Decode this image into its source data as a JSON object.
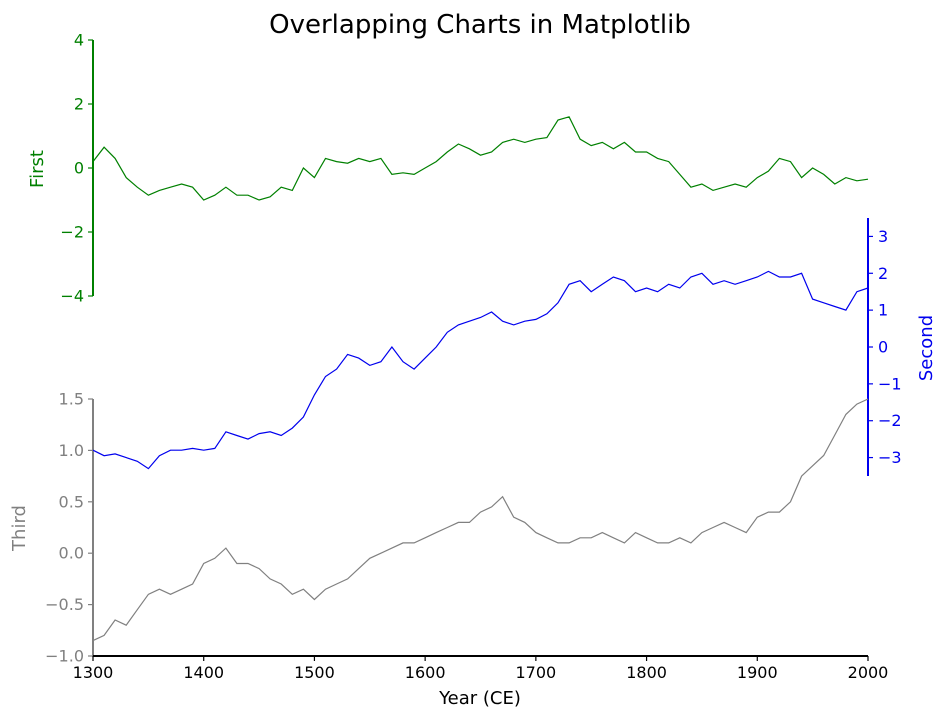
{
  "chart_data": {
    "type": "line",
    "title": "Overlapping Charts in Matplotlib",
    "xlabel": "Year (CE)",
    "xlim": [
      1300,
      2000
    ],
    "x_ticks": [
      1300,
      1400,
      1500,
      1600,
      1700,
      1800,
      1900,
      2000
    ],
    "x_tick_labels": [
      "1300",
      "1400",
      "1500",
      "1600",
      "1700",
      "1800",
      "1900",
      "2000"
    ],
    "grid": false,
    "series": [
      {
        "name": "First",
        "axis_label": "First",
        "color": "#008000",
        "ylim": [
          -4,
          4
        ],
        "y_ticks": [
          -4,
          -2,
          0,
          2,
          4
        ],
        "y_tick_labels": [
          "−4",
          "−2",
          "0",
          "2",
          "4"
        ],
        "x": [
          1300,
          1310,
          1320,
          1330,
          1340,
          1350,
          1360,
          1370,
          1380,
          1390,
          1400,
          1410,
          1420,
          1430,
          1440,
          1450,
          1460,
          1470,
          1480,
          1490,
          1500,
          1510,
          1520,
          1530,
          1540,
          1550,
          1560,
          1570,
          1580,
          1590,
          1600,
          1610,
          1620,
          1630,
          1640,
          1650,
          1660,
          1670,
          1680,
          1690,
          1700,
          1710,
          1720,
          1730,
          1740,
          1750,
          1760,
          1770,
          1780,
          1790,
          1800,
          1810,
          1820,
          1830,
          1840,
          1850,
          1860,
          1870,
          1880,
          1890,
          1900,
          1910,
          1920,
          1930,
          1940,
          1950,
          1960,
          1970,
          1980,
          1990,
          2000
        ],
        "values": [
          0.2,
          0.65,
          0.3,
          -0.3,
          -0.6,
          -0.85,
          -0.7,
          -0.6,
          -0.5,
          -0.6,
          -1.0,
          -0.85,
          -0.6,
          -0.85,
          -0.85,
          -1.0,
          -0.9,
          -0.6,
          -0.7,
          0.0,
          -0.3,
          0.3,
          0.2,
          0.15,
          0.3,
          0.2,
          0.3,
          -0.2,
          -0.15,
          -0.2,
          0.0,
          0.2,
          0.5,
          0.75,
          0.6,
          0.4,
          0.5,
          0.8,
          0.9,
          0.8,
          0.9,
          0.95,
          1.5,
          1.6,
          0.9,
          0.7,
          0.8,
          0.6,
          0.8,
          0.5,
          0.5,
          0.3,
          0.2,
          -0.2,
          -0.6,
          -0.5,
          -0.7,
          -0.6,
          -0.5,
          -0.6,
          -0.3,
          -0.1,
          0.3,
          0.2,
          -0.3,
          0.0,
          -0.2,
          -0.5,
          -0.3,
          -0.4,
          -0.35
        ]
      },
      {
        "name": "Second",
        "axis_label": "Second",
        "color": "#0000ee",
        "ylim": [
          -3.5,
          3.5
        ],
        "y_ticks": [
          -3,
          -2,
          -1,
          0,
          1,
          2,
          3
        ],
        "y_tick_labels": [
          "−3",
          "−2",
          "−1",
          "0",
          "1",
          "2",
          "3"
        ],
        "x": [
          1300,
          1310,
          1320,
          1330,
          1340,
          1350,
          1360,
          1370,
          1380,
          1390,
          1400,
          1410,
          1420,
          1430,
          1440,
          1450,
          1460,
          1470,
          1480,
          1490,
          1500,
          1510,
          1520,
          1530,
          1540,
          1550,
          1560,
          1570,
          1580,
          1590,
          1600,
          1610,
          1620,
          1630,
          1640,
          1650,
          1660,
          1670,
          1680,
          1690,
          1700,
          1710,
          1720,
          1730,
          1740,
          1750,
          1760,
          1770,
          1780,
          1790,
          1800,
          1810,
          1820,
          1830,
          1840,
          1850,
          1860,
          1870,
          1880,
          1890,
          1900,
          1910,
          1920,
          1930,
          1940,
          1950,
          1960,
          1970,
          1980,
          1990,
          2000
        ],
        "values": [
          -2.8,
          -2.95,
          -2.9,
          -3.0,
          -3.1,
          -3.3,
          -2.95,
          -2.8,
          -2.8,
          -2.75,
          -2.8,
          -2.75,
          -2.3,
          -2.4,
          -2.5,
          -2.35,
          -2.3,
          -2.4,
          -2.2,
          -1.9,
          -1.3,
          -0.8,
          -0.6,
          -0.2,
          -0.3,
          -0.5,
          -0.4,
          0.0,
          -0.4,
          -0.6,
          -0.3,
          0.0,
          0.4,
          0.6,
          0.7,
          0.8,
          0.95,
          0.7,
          0.6,
          0.7,
          0.75,
          0.9,
          1.2,
          1.7,
          1.8,
          1.5,
          1.7,
          1.9,
          1.8,
          1.5,
          1.6,
          1.5,
          1.7,
          1.6,
          1.9,
          2.0,
          1.7,
          1.8,
          1.7,
          1.8,
          1.9,
          2.05,
          1.9,
          1.9,
          2.0,
          1.3,
          1.2,
          1.1,
          1.0,
          1.5,
          1.6
        ]
      },
      {
        "name": "Third",
        "axis_label": "Third",
        "color": "#808080",
        "ylim": [
          -1.0,
          1.5
        ],
        "y_ticks": [
          -1.0,
          -0.5,
          0.0,
          0.5,
          1.0,
          1.5
        ],
        "y_tick_labels": [
          "−1.0",
          "−0.5",
          "0.0",
          "0.5",
          "1.0",
          "1.5"
        ],
        "x": [
          1300,
          1310,
          1320,
          1330,
          1340,
          1350,
          1360,
          1370,
          1380,
          1390,
          1400,
          1410,
          1420,
          1430,
          1440,
          1450,
          1460,
          1470,
          1480,
          1490,
          1500,
          1510,
          1520,
          1530,
          1540,
          1550,
          1560,
          1570,
          1580,
          1590,
          1600,
          1610,
          1620,
          1630,
          1640,
          1650,
          1660,
          1670,
          1680,
          1690,
          1700,
          1710,
          1720,
          1730,
          1740,
          1750,
          1760,
          1770,
          1780,
          1790,
          1800,
          1810,
          1820,
          1830,
          1840,
          1850,
          1860,
          1870,
          1880,
          1890,
          1900,
          1910,
          1920,
          1930,
          1940,
          1950,
          1960,
          1970,
          1980,
          1990,
          2000
        ],
        "values": [
          -0.85,
          -0.8,
          -0.65,
          -0.7,
          -0.55,
          -0.4,
          -0.35,
          -0.4,
          -0.35,
          -0.3,
          -0.1,
          -0.05,
          0.05,
          -0.1,
          -0.1,
          -0.15,
          -0.25,
          -0.3,
          -0.4,
          -0.35,
          -0.45,
          -0.35,
          -0.3,
          -0.25,
          -0.15,
          -0.05,
          0.0,
          0.05,
          0.1,
          0.1,
          0.15,
          0.2,
          0.25,
          0.3,
          0.3,
          0.4,
          0.45,
          0.55,
          0.35,
          0.3,
          0.2,
          0.15,
          0.1,
          0.1,
          0.15,
          0.15,
          0.2,
          0.15,
          0.1,
          0.2,
          0.15,
          0.1,
          0.1,
          0.15,
          0.1,
          0.2,
          0.25,
          0.3,
          0.25,
          0.2,
          0.35,
          0.4,
          0.4,
          0.5,
          0.75,
          0.85,
          0.95,
          1.15,
          1.35,
          1.45,
          1.5
        ]
      }
    ]
  }
}
